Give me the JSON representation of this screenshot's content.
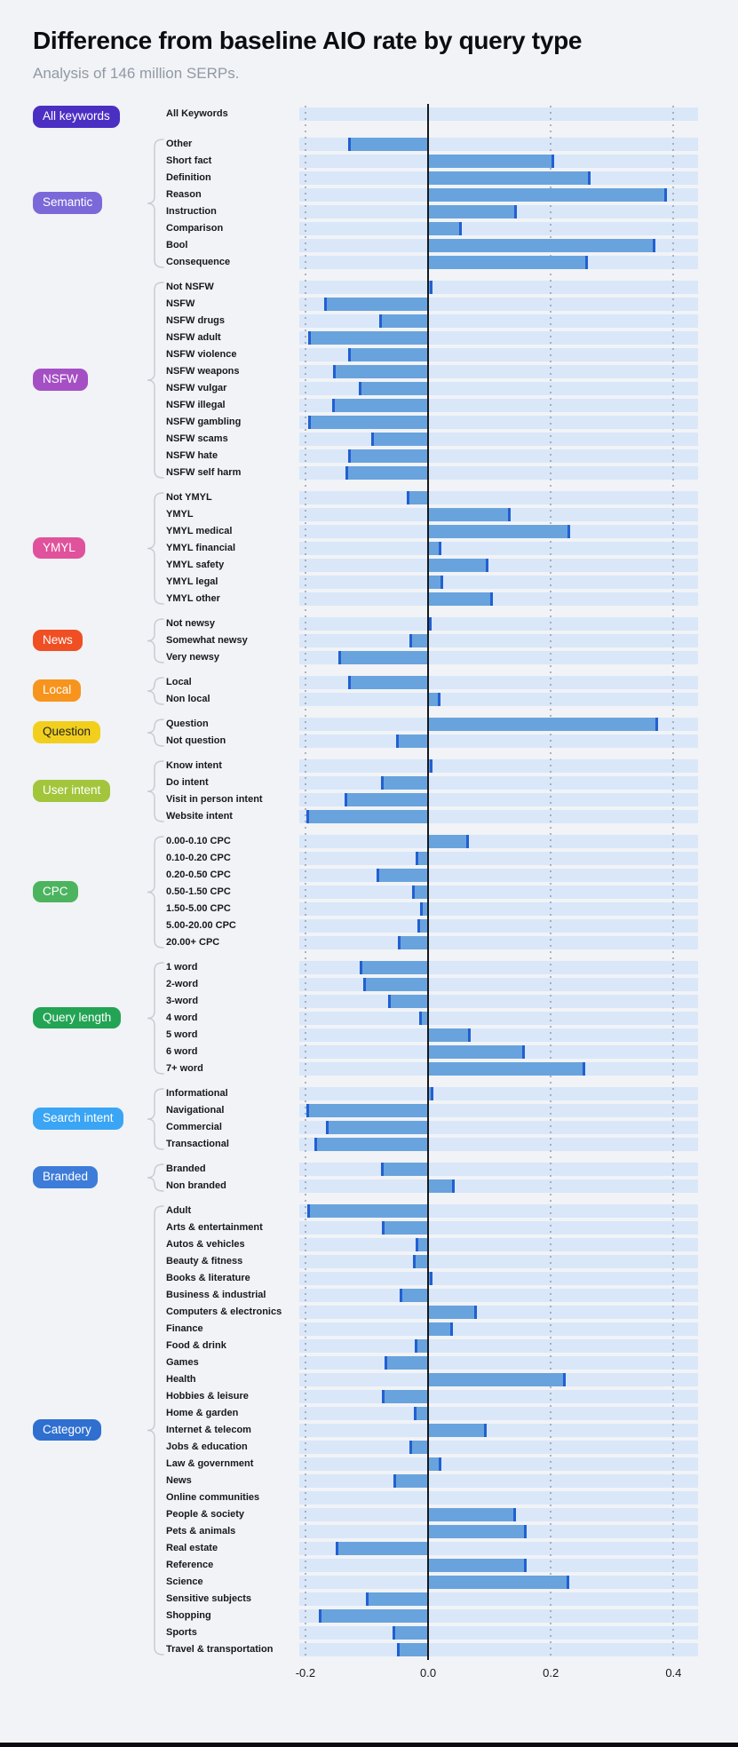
{
  "header": {
    "title": "Difference from baseline AIO rate by query type",
    "subtitle": "Analysis of 146 million SERPs."
  },
  "colors": {
    "background": "#f1f3f6",
    "track": "#d9e7f9",
    "bar": "#69a3dd",
    "bar_cap": "#2160d2",
    "zero_line": "#17191d",
    "grid": "#8d99aa",
    "bracket": "#c6ccd4"
  },
  "chart_data": {
    "type": "bar",
    "orientation": "horizontal",
    "title": "Difference from baseline AIO rate by query type",
    "subtitle": "Analysis of 146 million SERPs.",
    "xlabel": "Difference from baseline AIO rate",
    "ylabel": "",
    "xlim": [
      -0.21,
      0.44
    ],
    "grid": "dotted-vertical",
    "zero_line": 0.0,
    "xticks": [
      {
        "label": "-0.2",
        "value": -0.2
      },
      {
        "label": "0.0",
        "value": 0.0
      },
      {
        "label": "0.2",
        "value": 0.2
      },
      {
        "label": "0.4",
        "value": 0.4
      }
    ],
    "grid_values": [
      -0.2,
      0.2,
      0.4
    ],
    "sections": [
      {
        "label": "All keywords",
        "color": "#4b2fc3",
        "text_color": "#ffffff",
        "rows": [
          {
            "label": "All Keywords",
            "value": 0.0
          }
        ]
      },
      {
        "label": "Semantic",
        "color": "#7b68d9",
        "text_color": "#ffffff",
        "rows": [
          {
            "label": "Other",
            "value": -0.13
          },
          {
            "label": "Short fact",
            "value": 0.205
          },
          {
            "label": "Definition",
            "value": 0.265
          },
          {
            "label": "Reason",
            "value": 0.39
          },
          {
            "label": "Instruction",
            "value": 0.145
          },
          {
            "label": "Comparison",
            "value": 0.055
          },
          {
            "label": "Bool",
            "value": 0.37
          },
          {
            "label": "Consequence",
            "value": 0.26
          }
        ]
      },
      {
        "label": "NSFW",
        "color": "#a54fc4",
        "text_color": "#ffffff",
        "rows": [
          {
            "label": "Not NSFW",
            "value": 0.007
          },
          {
            "label": "NSFW",
            "value": -0.17
          },
          {
            "label": "NSFW drugs",
            "value": -0.08
          },
          {
            "label": "NSFW adult",
            "value": -0.195
          },
          {
            "label": "NSFW violence",
            "value": -0.13
          },
          {
            "label": "NSFW weapons",
            "value": -0.155
          },
          {
            "label": "NSFW vulgar",
            "value": -0.113
          },
          {
            "label": "NSFW illegal",
            "value": -0.156
          },
          {
            "label": "NSFW gambling",
            "value": -0.196
          },
          {
            "label": "NSFW scams",
            "value": -0.093
          },
          {
            "label": "NSFW hate",
            "value": -0.13
          },
          {
            "label": "NSFW self harm",
            "value": -0.134
          }
        ]
      },
      {
        "label": "YMYL",
        "color": "#e0529c",
        "text_color": "#ffffff",
        "rows": [
          {
            "label": "Not YMYL",
            "value": -0.035
          },
          {
            "label": "YMYL",
            "value": 0.135
          },
          {
            "label": "YMYL medical",
            "value": 0.232
          },
          {
            "label": "YMYL financial",
            "value": 0.021
          },
          {
            "label": "YMYL safety",
            "value": 0.099
          },
          {
            "label": "YMYL legal",
            "value": 0.025
          },
          {
            "label": "YMYL other",
            "value": 0.105
          }
        ]
      },
      {
        "label": "News",
        "color": "#f04e23",
        "text_color": "#ffffff",
        "rows": [
          {
            "label": "Not newsy",
            "value": 0.005
          },
          {
            "label": "Somewhat newsy",
            "value": -0.03
          },
          {
            "label": "Very newsy",
            "value": -0.146
          }
        ]
      },
      {
        "label": "Local",
        "color": "#f7941e",
        "text_color": "#ffffff",
        "rows": [
          {
            "label": "Local",
            "value": -0.13
          },
          {
            "label": "Non local",
            "value": 0.02
          }
        ]
      },
      {
        "label": "Question",
        "color": "#f2cf1d",
        "text_color": "#1f2125",
        "rows": [
          {
            "label": "Question",
            "value": 0.375
          },
          {
            "label": "Not question",
            "value": -0.052
          }
        ]
      },
      {
        "label": "User intent",
        "color": "#a2c53c",
        "text_color": "#ffffff",
        "rows": [
          {
            "label": "Know intent",
            "value": 0.007
          },
          {
            "label": "Do intent",
            "value": -0.077
          },
          {
            "label": "Visit in person intent",
            "value": -0.136
          },
          {
            "label": "Website intent",
            "value": -0.199
          }
        ]
      },
      {
        "label": "CPC",
        "color": "#4cb45f",
        "text_color": "#ffffff",
        "rows": [
          {
            "label": "0.00-0.10 CPC",
            "value": 0.067
          },
          {
            "label": "0.10-0.20 CPC",
            "value": -0.021
          },
          {
            "label": "0.20-0.50 CPC",
            "value": -0.084
          },
          {
            "label": "0.50-1.50 CPC",
            "value": -0.026
          },
          {
            "label": "1.50-5.00 CPC",
            "value": -0.013
          },
          {
            "label": "5.00-20.00 CPC",
            "value": -0.017
          },
          {
            "label": "20.00+ CPC",
            "value": -0.05
          }
        ]
      },
      {
        "label": "Query length",
        "color": "#23a454",
        "text_color": "#ffffff",
        "rows": [
          {
            "label": "1 word",
            "value": -0.112
          },
          {
            "label": "2-word",
            "value": -0.106
          },
          {
            "label": "3-word",
            "value": -0.065
          },
          {
            "label": "4 word",
            "value": -0.014
          },
          {
            "label": "5 word",
            "value": 0.07
          },
          {
            "label": "6 word",
            "value": 0.158
          },
          {
            "label": "7+ word",
            "value": 0.256
          }
        ]
      },
      {
        "label": "Search intent",
        "color": "#3aa5f5",
        "text_color": "#ffffff",
        "rows": [
          {
            "label": "Informational",
            "value": 0.008
          },
          {
            "label": "Navigational",
            "value": -0.199
          },
          {
            "label": "Commercial",
            "value": -0.167
          },
          {
            "label": "Transactional",
            "value": -0.185
          }
        ]
      },
      {
        "label": "Branded",
        "color": "#3d7cd8",
        "text_color": "#ffffff",
        "rows": [
          {
            "label": "Branded",
            "value": -0.077
          },
          {
            "label": "Non branded",
            "value": 0.043
          }
        ]
      },
      {
        "label": "Category",
        "color": "#2e6fd0",
        "text_color": "#ffffff",
        "rows": [
          {
            "label": "Adult",
            "value": -0.197
          },
          {
            "label": "Arts & entertainment",
            "value": -0.076
          },
          {
            "label": "Autos & vehicles",
            "value": -0.02
          },
          {
            "label": "Beauty & fitness",
            "value": -0.025
          },
          {
            "label": "Books & literature",
            "value": 0.007
          },
          {
            "label": "Business & industrial",
            "value": -0.046
          },
          {
            "label": "Computers & electronics",
            "value": 0.079
          },
          {
            "label": "Finance",
            "value": 0.04
          },
          {
            "label": "Food & drink",
            "value": -0.022
          },
          {
            "label": "Games",
            "value": -0.071
          },
          {
            "label": "Health",
            "value": 0.225
          },
          {
            "label": "Hobbies & leisure",
            "value": -0.076
          },
          {
            "label": "Home & garden",
            "value": -0.023
          },
          {
            "label": "Internet & telecom",
            "value": 0.095
          },
          {
            "label": "Jobs & education",
            "value": -0.03
          },
          {
            "label": "Law & government",
            "value": 0.022
          },
          {
            "label": "News",
            "value": -0.057
          },
          {
            "label": "Online communities",
            "value": 0.0
          },
          {
            "label": "People & society",
            "value": 0.143
          },
          {
            "label": "Pets & animals",
            "value": 0.161
          },
          {
            "label": "Real estate",
            "value": -0.15
          },
          {
            "label": "Reference",
            "value": 0.161
          },
          {
            "label": "Science",
            "value": 0.23
          },
          {
            "label": "Sensitive subjects",
            "value": -0.102
          },
          {
            "label": "Shopping",
            "value": -0.178
          },
          {
            "label": "Sports",
            "value": -0.058
          },
          {
            "label": "Travel & transportation",
            "value": -0.051
          }
        ]
      }
    ]
  }
}
